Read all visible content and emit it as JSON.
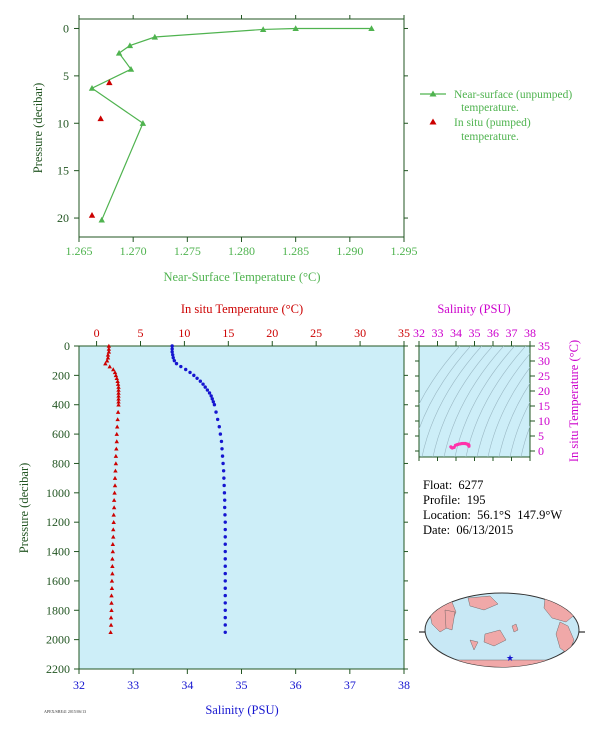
{
  "colors": {
    "green": "#4fb34f",
    "red": "#cc0000",
    "blue": "#1515d0",
    "magenta": "#cc00cc",
    "axis": "#225522",
    "plot_bg": "#cdeef8",
    "land": "#f0a8a8",
    "ocean": "#c8e8f5"
  },
  "legend": {
    "line_label_1": "Near-surface (unpumped)",
    "line_label_2": "temperature.",
    "tri_label_1": "In situ (pumped)",
    "tri_label_2": "temperature."
  },
  "info": {
    "float": "Float:  6277",
    "profile": "Profile:  195",
    "location": "Location:  56.1°S  147.9°W",
    "date": "Date:  06/13/2015"
  },
  "footnote": "APEX/SBE41 2015/06/13",
  "chart_data": [
    {
      "type": "line",
      "name": "near-surface",
      "xlabel": "Near-Surface Temperature (°C)",
      "ylabel": "Pressure (decibar)",
      "xlim": [
        1.265,
        1.295
      ],
      "ylim": [
        22,
        -1
      ],
      "xticks": [
        1.265,
        1.27,
        1.275,
        1.28,
        1.285,
        1.29,
        1.295
      ],
      "xtick_labels": [
        "1.265",
        "1.270",
        "1.275",
        "1.280",
        "1.285",
        "1.290",
        "1.295"
      ],
      "yticks": [
        0,
        5,
        10,
        15,
        20
      ],
      "series": [
        {
          "name": "Near-surface (unpumped) temperature.",
          "x": [
            1.292,
            1.285,
            1.282,
            1.272,
            1.2697,
            1.2687,
            1.2698,
            1.2662,
            1.2709,
            1.2671
          ],
          "y": [
            0,
            0,
            0.1,
            0.9,
            1.8,
            2.6,
            4.3,
            6.3,
            10.0,
            20.2
          ]
        },
        {
          "name": "In situ (pumped) temperature.",
          "x": [
            1.2678,
            1.267,
            1.2662
          ],
          "y": [
            5.7,
            9.5,
            19.7
          ]
        }
      ]
    },
    {
      "type": "scatter",
      "name": "profile",
      "ylabel": "Pressure (decibar)",
      "top_xlabel": "In situ Temperature (°C)",
      "bottom_xlabel": "Salinity (PSU)",
      "temp_lim": [
        -2,
        35
      ],
      "sal_lim": [
        32,
        38
      ],
      "ylim": [
        2200,
        0
      ],
      "temp_ticks": [
        0,
        5,
        10,
        15,
        20,
        25,
        30,
        35
      ],
      "sal_ticks": [
        32,
        33,
        34,
        35,
        36,
        37,
        38
      ],
      "yticks": [
        0,
        200,
        400,
        600,
        800,
        1000,
        1200,
        1400,
        1600,
        1800,
        2000,
        2200
      ],
      "temperature": {
        "p": [
          0,
          20,
          40,
          60,
          80,
          100,
          120,
          140,
          160,
          180,
          200,
          220,
          240,
          260,
          280,
          300,
          320,
          340,
          360,
          380,
          400,
          450,
          500,
          550,
          600,
          650,
          700,
          750,
          800,
          850,
          900,
          950,
          1000,
          1050,
          1100,
          1150,
          1200,
          1250,
          1300,
          1350,
          1400,
          1450,
          1500,
          1550,
          1600,
          1650,
          1700,
          1750,
          1800,
          1850,
          1900,
          1950
        ],
        "t": [
          1.4,
          1.4,
          1.4,
          1.3,
          1.3,
          1.2,
          1.0,
          1.5,
          1.9,
          2.1,
          2.2,
          2.3,
          2.4,
          2.45,
          2.5,
          2.5,
          2.5,
          2.5,
          2.5,
          2.5,
          2.5,
          2.45,
          2.4,
          2.35,
          2.3,
          2.3,
          2.25,
          2.2,
          2.2,
          2.15,
          2.1,
          2.1,
          2.05,
          2.0,
          2.0,
          1.95,
          1.95,
          1.9,
          1.9,
          1.85,
          1.85,
          1.8,
          1.8,
          1.8,
          1.75,
          1.75,
          1.7,
          1.7,
          1.7,
          1.65,
          1.65,
          1.6
        ]
      },
      "salinity": {
        "p": [
          0,
          20,
          40,
          60,
          80,
          100,
          120,
          140,
          160,
          180,
          200,
          220,
          240,
          260,
          280,
          300,
          320,
          340,
          360,
          380,
          400,
          450,
          500,
          550,
          600,
          650,
          700,
          750,
          800,
          850,
          900,
          950,
          1000,
          1050,
          1100,
          1150,
          1200,
          1250,
          1300,
          1350,
          1400,
          1450,
          1500,
          1550,
          1600,
          1650,
          1700,
          1750,
          1800,
          1850,
          1900,
          1950
        ],
        "s": [
          33.72,
          33.72,
          33.72,
          33.73,
          33.74,
          33.76,
          33.8,
          33.88,
          33.97,
          34.05,
          34.12,
          34.18,
          34.24,
          34.29,
          34.33,
          34.37,
          34.41,
          34.44,
          34.46,
          34.48,
          34.5,
          34.53,
          34.56,
          34.59,
          34.61,
          34.63,
          34.64,
          34.65,
          34.66,
          34.67,
          34.675,
          34.68,
          34.685,
          34.69,
          34.69,
          34.695,
          34.7,
          34.7,
          34.7,
          34.7,
          34.7,
          34.7,
          34.7,
          34.7,
          34.7,
          34.7,
          34.7,
          34.7,
          34.7,
          34.7,
          34.7,
          34.7
        ]
      }
    },
    {
      "type": "scatter",
      "name": "ts-diagram",
      "title": "Salinity (PSU)",
      "ylabel": "In situ Temperature (°C)",
      "xlim": [
        32,
        38
      ],
      "ylim": [
        -2,
        35
      ],
      "xticks": [
        32,
        33,
        34,
        35,
        36,
        37,
        38
      ],
      "yticks": [
        0,
        5,
        10,
        15,
        20,
        25,
        30,
        35
      ],
      "points": [
        [
          33.72,
          1.4
        ],
        [
          33.75,
          1.2
        ],
        [
          33.8,
          1.0
        ],
        [
          33.9,
          1.2
        ],
        [
          33.97,
          1.9
        ],
        [
          34.05,
          2.1
        ],
        [
          34.12,
          2.2
        ],
        [
          34.2,
          2.35
        ],
        [
          34.29,
          2.45
        ],
        [
          34.37,
          2.5
        ],
        [
          34.44,
          2.5
        ],
        [
          34.5,
          2.5
        ],
        [
          34.56,
          2.4
        ],
        [
          34.61,
          2.3
        ],
        [
          34.65,
          2.2
        ],
        [
          34.68,
          2.1
        ],
        [
          34.7,
          1.9
        ],
        [
          34.7,
          1.7
        ],
        [
          34.7,
          1.6
        ]
      ]
    }
  ]
}
